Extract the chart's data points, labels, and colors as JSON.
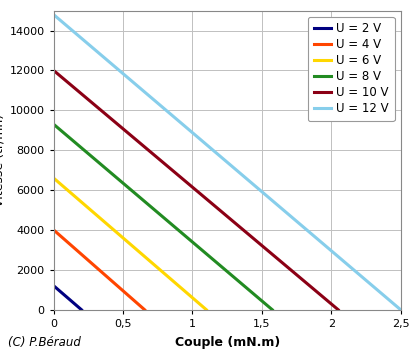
{
  "lines": [
    {
      "label": "U = 2 V",
      "color": "#000080",
      "x0": 0,
      "y0": 1200,
      "x1": 0.2
    },
    {
      "label": "U = 4 V",
      "color": "#FF4500",
      "x0": 0,
      "y0": 4000,
      "x1": 0.655
    },
    {
      "label": "U = 6 V",
      "color": "#FFD700",
      "x0": 0,
      "y0": 6600,
      "x1": 1.1
    },
    {
      "label": "U = 8 V",
      "color": "#228B22",
      "x0": 0,
      "y0": 9300,
      "x1": 1.575
    },
    {
      "label": "U = 10 V",
      "color": "#8B0015",
      "x0": 0,
      "y0": 12000,
      "x1": 2.05
    },
    {
      "label": "U = 12 V",
      "color": "#87CEEB",
      "x0": 0,
      "y0": 14800,
      "x1": 2.5
    }
  ],
  "xlim": [
    0,
    2.5
  ],
  "ylim": [
    0,
    15000
  ],
  "xticks": [
    0,
    0.5,
    1.0,
    1.5,
    2.0,
    2.5
  ],
  "yticks": [
    0,
    2000,
    4000,
    6000,
    8000,
    10000,
    12000,
    14000
  ],
  "xlabel": "Couple (mN.m)",
  "grid_color": "#C0C0C0",
  "background_color": "#FFFFFF",
  "legend_fontsize": 8.5,
  "axis_label_fontsize": 9,
  "tick_fontsize": 8,
  "linewidth": 2.2,
  "copyright": "(C) P.Béraud"
}
